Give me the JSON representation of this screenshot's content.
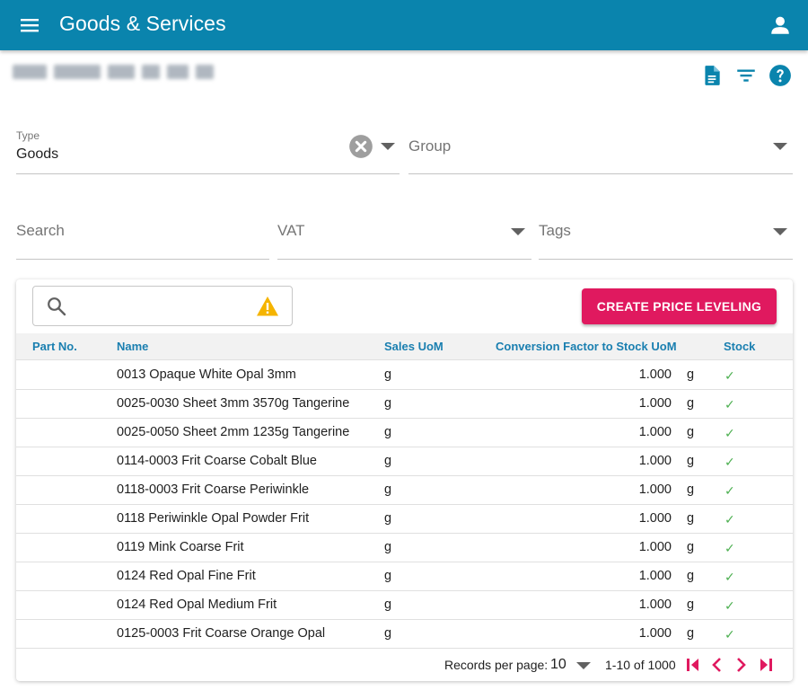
{
  "header": {
    "title": "Goods & Services",
    "menu_icon": "menu-icon",
    "account_icon": "account-icon"
  },
  "toolbar": {
    "icons": [
      "document-icon",
      "filter-icon",
      "help-icon"
    ]
  },
  "filters": {
    "type": {
      "label": "Type",
      "value": "Goods"
    },
    "group": {
      "placeholder": "Group"
    },
    "search": {
      "placeholder": "Search"
    },
    "vat": {
      "placeholder": "VAT"
    },
    "tags": {
      "placeholder": "Tags"
    }
  },
  "table": {
    "search_placeholder": "",
    "create_button": "CREATE PRICE LEVELING",
    "columns": {
      "part_no": "Part No.",
      "name": "Name",
      "sales_uom": "Sales UoM",
      "conversion": "Conversion Factor to Stock UoM",
      "stock": "Stock"
    },
    "rows": [
      {
        "part_no": "",
        "name": "0013 Opaque White Opal 3mm",
        "sales_uom": "g",
        "factor": "1.000",
        "stock_uom": "g",
        "stock": "✓"
      },
      {
        "part_no": "",
        "name": "0025-0030 Sheet 3mm 3570g Tangerine",
        "sales_uom": "g",
        "factor": "1.000",
        "stock_uom": "g",
        "stock": "✓"
      },
      {
        "part_no": "",
        "name": "0025-0050 Sheet 2mm 1235g Tangerine",
        "sales_uom": "g",
        "factor": "1.000",
        "stock_uom": "g",
        "stock": "✓"
      },
      {
        "part_no": "",
        "name": "0114-0003 Frit Coarse Cobalt Blue",
        "sales_uom": "g",
        "factor": "1.000",
        "stock_uom": "g",
        "stock": "✓"
      },
      {
        "part_no": "",
        "name": "0118-0003 Frit Coarse Periwinkle",
        "sales_uom": "g",
        "factor": "1.000",
        "stock_uom": "g",
        "stock": "✓"
      },
      {
        "part_no": "",
        "name": "0118 Periwinkle Opal Powder Frit",
        "sales_uom": "g",
        "factor": "1.000",
        "stock_uom": "g",
        "stock": "✓"
      },
      {
        "part_no": "",
        "name": "0119 Mink Coarse Frit",
        "sales_uom": "g",
        "factor": "1.000",
        "stock_uom": "g",
        "stock": "✓"
      },
      {
        "part_no": "",
        "name": "0124 Red Opal Fine Frit",
        "sales_uom": "g",
        "factor": "1.000",
        "stock_uom": "g",
        "stock": "✓"
      },
      {
        "part_no": "",
        "name": "0124 Red Opal Medium Frit",
        "sales_uom": "g",
        "factor": "1.000",
        "stock_uom": "g",
        "stock": "✓"
      },
      {
        "part_no": "",
        "name": "0125-0003 Frit Coarse Orange Opal",
        "sales_uom": "g",
        "factor": "1.000",
        "stock_uom": "g",
        "stock": "✓"
      }
    ],
    "pagination": {
      "records_label": "Records per page:",
      "per_page": "10",
      "range": "1-10 of 1000"
    }
  },
  "colors": {
    "appbar": "#0a84ad",
    "accent": "#e0195f",
    "header_text": "#1a7fb0",
    "check": "#4caf50",
    "warning": "#f5b400"
  }
}
